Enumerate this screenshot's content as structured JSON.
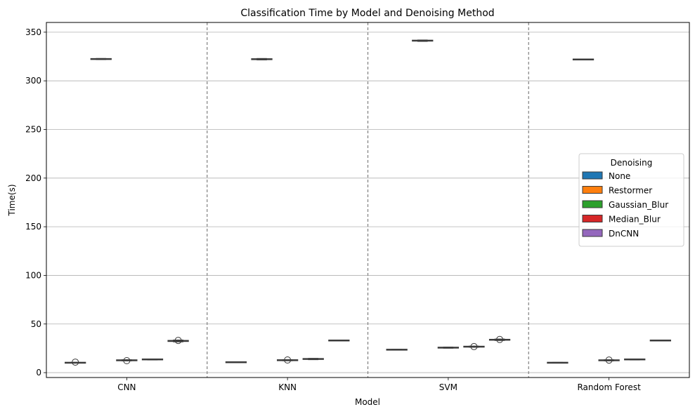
{
  "chart_data": {
    "type": "box",
    "title": "Classification Time by Model and Denoising Method",
    "xlabel": "Model",
    "ylabel": "Time(s)",
    "ylim": [
      -5,
      360
    ],
    "yticks": [
      0,
      50,
      100,
      150,
      200,
      250,
      300,
      350
    ],
    "grid": "y-major",
    "categories": [
      "CNN",
      "KNN",
      "SVM",
      "Random Forest"
    ],
    "separators": "dashed vertical lines between models",
    "legend": {
      "title": "Denoising",
      "placement": "center-right"
    },
    "series": [
      {
        "name": "None",
        "color": "#1f77b4",
        "boxes": [
          {
            "q1": 10.0,
            "median": 10.2,
            "q3": 10.4,
            "whisker_low": 9.8,
            "whisker_high": 10.6,
            "outliers": [
              10.8
            ]
          },
          {
            "q1": 10.5,
            "median": 10.7,
            "q3": 10.9,
            "whisker_low": 10.3,
            "whisker_high": 11.1,
            "outliers": []
          },
          {
            "q1": 23.4,
            "median": 23.6,
            "q3": 23.8,
            "whisker_low": 23.2,
            "whisker_high": 24.0,
            "outliers": []
          },
          {
            "q1": 10.0,
            "median": 10.2,
            "q3": 10.4,
            "whisker_low": 9.8,
            "whisker_high": 10.6,
            "outliers": []
          }
        ]
      },
      {
        "name": "Restormer",
        "color": "#ff7f0e",
        "boxes": [
          {
            "q1": 322.0,
            "median": 322.4,
            "q3": 322.8,
            "whisker_low": 321.8,
            "whisker_high": 323.0,
            "outliers": []
          },
          {
            "q1": 321.8,
            "median": 322.2,
            "q3": 322.7,
            "whisker_low": 321.5,
            "whisker_high": 323.0,
            "outliers": []
          },
          {
            "q1": 340.8,
            "median": 341.3,
            "q3": 341.8,
            "whisker_low": 340.5,
            "whisker_high": 342.0,
            "outliers": []
          },
          {
            "q1": 321.6,
            "median": 321.9,
            "q3": 322.3,
            "whisker_low": 321.4,
            "whisker_high": 322.5,
            "outliers": []
          }
        ]
      },
      {
        "name": "Gaussian_Blur",
        "color": "#2ca02c",
        "boxes": [
          {
            "q1": 12.4,
            "median": 12.8,
            "q3": 13.0,
            "whisker_low": 12.1,
            "whisker_high": 13.3,
            "outliers": [
              12.3
            ]
          },
          {
            "q1": 12.5,
            "median": 12.8,
            "q3": 13.1,
            "whisker_low": 12.2,
            "whisker_high": 13.4,
            "outliers": [
              13.0
            ]
          },
          {
            "q1": 25.4,
            "median": 25.7,
            "q3": 26.0,
            "whisker_low": 25.1,
            "whisker_high": 26.3,
            "outliers": []
          },
          {
            "q1": 12.4,
            "median": 12.7,
            "q3": 13.0,
            "whisker_low": 12.1,
            "whisker_high": 13.3,
            "outliers": [
              12.9
            ]
          }
        ]
      },
      {
        "name": "Median_Blur",
        "color": "#d62728",
        "boxes": [
          {
            "q1": 13.3,
            "median": 13.6,
            "q3": 13.9,
            "whisker_low": 13.0,
            "whisker_high": 14.1,
            "outliers": []
          },
          {
            "q1": 13.7,
            "median": 14.0,
            "q3": 14.4,
            "whisker_low": 13.3,
            "whisker_high": 14.7,
            "outliers": []
          },
          {
            "q1": 26.4,
            "median": 26.7,
            "q3": 27.0,
            "whisker_low": 26.1,
            "whisker_high": 27.3,
            "outliers": [
              26.8
            ]
          },
          {
            "q1": 13.3,
            "median": 13.6,
            "q3": 13.9,
            "whisker_low": 13.0,
            "whisker_high": 14.1,
            "outliers": []
          }
        ]
      },
      {
        "name": "DnCNN",
        "color": "#9467bd",
        "boxes": [
          {
            "q1": 32.0,
            "median": 32.6,
            "q3": 33.2,
            "whisker_low": 31.6,
            "whisker_high": 33.6,
            "outliers": [
              33.1
            ]
          },
          {
            "q1": 32.8,
            "median": 33.0,
            "q3": 33.3,
            "whisker_low": 32.6,
            "whisker_high": 33.5,
            "outliers": []
          },
          {
            "q1": 33.4,
            "median": 33.8,
            "q3": 34.2,
            "whisker_low": 33.0,
            "whisker_high": 34.6,
            "outliers": [
              34.1
            ]
          },
          {
            "q1": 32.8,
            "median": 33.0,
            "q3": 33.3,
            "whisker_low": 32.6,
            "whisker_high": 33.5,
            "outliers": []
          }
        ]
      }
    ]
  }
}
